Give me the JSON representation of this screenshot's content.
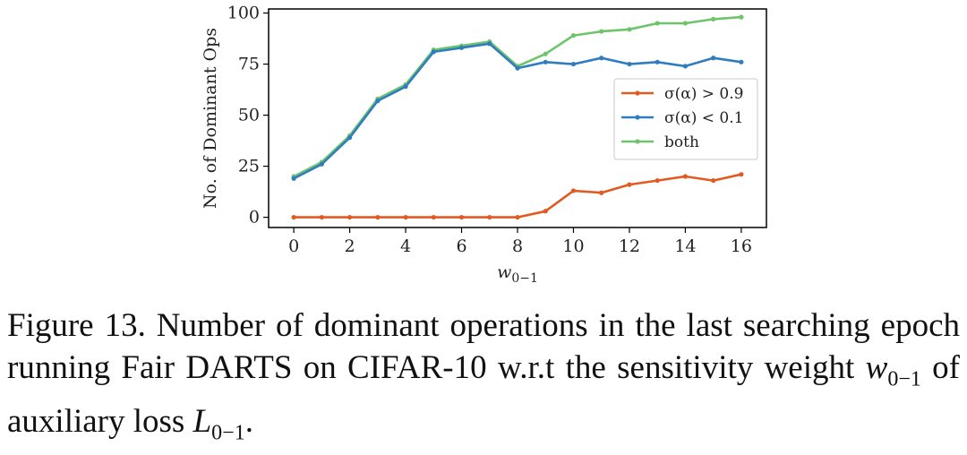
{
  "chart_data": {
    "type": "line",
    "title": "",
    "xlabel": "w",
    "xlabel_sub": "0−1",
    "ylabel": "No. of Dominant Ops",
    "xlim": [
      -0.9,
      16.9
    ],
    "ylim": [
      -5,
      102
    ],
    "x_ticks": [
      0,
      2,
      4,
      6,
      8,
      10,
      12,
      14,
      16
    ],
    "y_ticks": [
      0,
      25,
      50,
      75,
      100
    ],
    "grid": false,
    "legend_position": "center-right",
    "x": [
      0,
      1,
      2,
      3,
      4,
      5,
      6,
      7,
      8,
      9,
      10,
      11,
      12,
      13,
      14,
      15,
      16
    ],
    "series": [
      {
        "name": "σ(α) > 0.9",
        "color": "#e15a22",
        "values": [
          0,
          0,
          0,
          0,
          0,
          0,
          0,
          0,
          0,
          3,
          13,
          12,
          16,
          18,
          20,
          18,
          21
        ]
      },
      {
        "name": "σ(α) < 0.1",
        "color": "#2f7dc0",
        "values": [
          19,
          26,
          39,
          57,
          64,
          81,
          83,
          85,
          73,
          76,
          75,
          78,
          75,
          76,
          74,
          78,
          76
        ]
      },
      {
        "name": "both",
        "color": "#6ec46a",
        "values": [
          20,
          27,
          40,
          58,
          65,
          82,
          84,
          86,
          74,
          80,
          89,
          91,
          92,
          95,
          95,
          97,
          98
        ]
      }
    ]
  },
  "caption": {
    "part1": "Figure 13. Number of dominant operations in the last searching epoch running Fair DARTS on CIFAR-10 w.r.t the sensitivity weight ",
    "var1": "w",
    "sub1": "0−1",
    "part2": " of auxiliary loss ",
    "var2": "L",
    "sub2": "0−1",
    "part3": "."
  }
}
